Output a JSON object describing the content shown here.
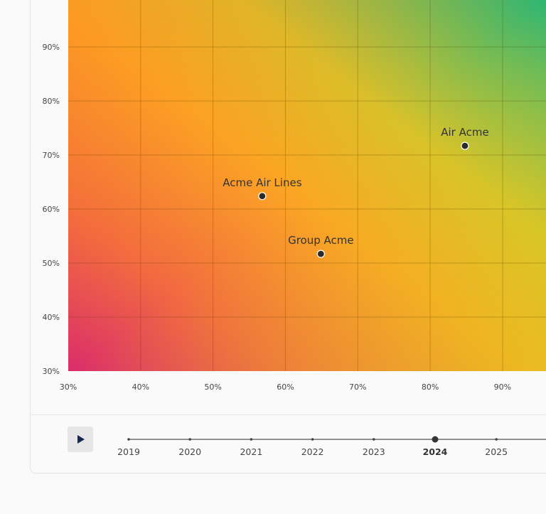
{
  "chart_data": {
    "type": "scatter",
    "title": "",
    "xlabel": "",
    "ylabel": "",
    "xlim": [
      30,
      96
    ],
    "ylim": [
      30,
      98.7
    ],
    "x_ticks": [
      "30%",
      "40%",
      "50%",
      "60%",
      "70%",
      "80%",
      "90%"
    ],
    "y_ticks": [
      "30%",
      "40%",
      "50%",
      "60%",
      "70%",
      "80%",
      "90%"
    ],
    "grid": true,
    "background": "diagonal gradient: pink (bottom-left) to orange to yellow to green (top-right)",
    "points": [
      {
        "label": "Acme Air Lines",
        "x": 56.8,
        "y": 62.4
      },
      {
        "label": "Group Acme",
        "x": 64.9,
        "y": 51.7
      },
      {
        "label": "Air Acme",
        "x": 84.8,
        "y": 71.7
      }
    ]
  },
  "timeline": {
    "play_icon": "play-icon",
    "years": [
      "2019",
      "2020",
      "2021",
      "2022",
      "2023",
      "2024",
      "2025"
    ],
    "selected": "2024"
  },
  "colors": {
    "point": "#2b2b2b",
    "play": "#142850"
  }
}
